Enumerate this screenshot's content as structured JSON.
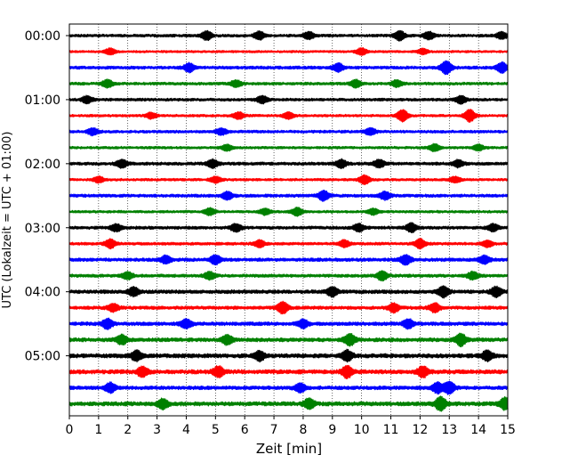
{
  "chart_data": {
    "type": "line",
    "title": "",
    "xlabel": "Zeit  [min]",
    "ylabel": "UTC (Lokalzeit = UTC + 01:00)",
    "xlim": [
      0,
      15
    ],
    "x_ticks": [
      0,
      1,
      2,
      3,
      4,
      5,
      6,
      7,
      8,
      9,
      10,
      11,
      12,
      13,
      14,
      15
    ],
    "x_tick_labels": [
      "0",
      "1",
      "2",
      "3",
      "4",
      "5",
      "6",
      "7",
      "8",
      "9",
      "10",
      "11",
      "12",
      "13",
      "14",
      "15"
    ],
    "y_tick_labels": [
      "00:00",
      "01:00",
      "02:00",
      "03:00",
      "04:00",
      "05:00"
    ],
    "y_tick_trace_index": [
      0,
      4,
      8,
      12,
      16,
      20
    ],
    "grid": {
      "x": true,
      "y": false,
      "style": "dotted"
    },
    "trace_interval_minutes": 15,
    "trace_count": 24,
    "trace_colors": [
      "#000000",
      "#ff0000",
      "#0000ff",
      "#008000"
    ],
    "traces": [
      {
        "start": "00:00",
        "color": "#000000",
        "amplitude": 1.0,
        "events": [
          [
            4.7,
            1.8
          ],
          [
            6.5,
            1.6
          ],
          [
            8.2,
            1.4
          ],
          [
            11.3,
            1.9
          ],
          [
            12.3,
            1.5
          ],
          [
            14.8,
            1.4
          ]
        ]
      },
      {
        "start": "00:15",
        "color": "#ff0000",
        "amplitude": 0.8,
        "events": [
          [
            1.4,
            1.6
          ],
          [
            10.0,
            1.8
          ],
          [
            12.1,
            1.4
          ]
        ]
      },
      {
        "start": "00:30",
        "color": "#0000ff",
        "amplitude": 1.1,
        "events": [
          [
            4.1,
            1.6
          ],
          [
            9.2,
            1.5
          ],
          [
            12.9,
            2.4
          ],
          [
            14.8,
            1.9
          ]
        ]
      },
      {
        "start": "00:45",
        "color": "#008000",
        "amplitude": 1.0,
        "events": [
          [
            1.3,
            1.5
          ],
          [
            5.7,
            1.4
          ],
          [
            9.8,
            1.5
          ],
          [
            11.2,
            1.3
          ]
        ]
      },
      {
        "start": "01:00",
        "color": "#000000",
        "amplitude": 1.0,
        "events": [
          [
            0.6,
            1.4
          ],
          [
            6.6,
            1.5
          ],
          [
            13.4,
            1.6
          ]
        ]
      },
      {
        "start": "01:15",
        "color": "#ff0000",
        "amplitude": 0.9,
        "events": [
          [
            2.8,
            1.3
          ],
          [
            5.8,
            1.5
          ],
          [
            7.5,
            1.4
          ],
          [
            11.4,
            2.6
          ],
          [
            13.7,
            2.8
          ]
        ]
      },
      {
        "start": "01:30",
        "color": "#0000ff",
        "amplitude": 1.0,
        "events": [
          [
            0.8,
            1.4
          ],
          [
            5.2,
            1.3
          ],
          [
            10.3,
            1.4
          ]
        ]
      },
      {
        "start": "01:45",
        "color": "#008000",
        "amplitude": 0.9,
        "events": [
          [
            5.4,
            1.4
          ],
          [
            12.5,
            1.6
          ],
          [
            14.0,
            1.3
          ]
        ]
      },
      {
        "start": "02:00",
        "color": "#000000",
        "amplitude": 1.1,
        "events": [
          [
            1.8,
            1.4
          ],
          [
            4.9,
            1.5
          ],
          [
            9.3,
            1.5
          ],
          [
            10.6,
            1.4
          ],
          [
            13.3,
            1.3
          ]
        ]
      },
      {
        "start": "02:15",
        "color": "#ff0000",
        "amplitude": 0.9,
        "events": [
          [
            1.0,
            1.3
          ],
          [
            5.0,
            1.4
          ],
          [
            10.1,
            2.0
          ],
          [
            13.2,
            1.3
          ]
        ]
      },
      {
        "start": "02:30",
        "color": "#0000ff",
        "amplitude": 1.1,
        "events": [
          [
            5.4,
            1.4
          ],
          [
            8.7,
            1.8
          ],
          [
            10.8,
            1.4
          ]
        ]
      },
      {
        "start": "02:45",
        "color": "#008000",
        "amplitude": 0.9,
        "events": [
          [
            4.8,
            1.5
          ],
          [
            6.7,
            1.4
          ],
          [
            7.8,
            1.8
          ],
          [
            10.4,
            1.3
          ]
        ]
      },
      {
        "start": "03:00",
        "color": "#000000",
        "amplitude": 1.1,
        "events": [
          [
            1.6,
            1.3
          ],
          [
            5.7,
            1.4
          ],
          [
            9.9,
            1.4
          ],
          [
            11.7,
            1.6
          ],
          [
            14.5,
            1.3
          ]
        ]
      },
      {
        "start": "03:15",
        "color": "#ff0000",
        "amplitude": 1.0,
        "events": [
          [
            1.4,
            1.8
          ],
          [
            6.5,
            1.4
          ],
          [
            9.4,
            1.4
          ],
          [
            12.0,
            1.9
          ],
          [
            14.3,
            1.3
          ]
        ]
      },
      {
        "start": "03:30",
        "color": "#0000ff",
        "amplitude": 1.2,
        "events": [
          [
            3.3,
            1.3
          ],
          [
            5.0,
            1.5
          ],
          [
            11.5,
            1.6
          ],
          [
            14.2,
            1.4
          ]
        ]
      },
      {
        "start": "03:45",
        "color": "#008000",
        "amplitude": 1.1,
        "events": [
          [
            2.0,
            1.3
          ],
          [
            4.8,
            1.4
          ],
          [
            10.7,
            1.7
          ],
          [
            13.8,
            1.4
          ]
        ]
      },
      {
        "start": "04:00",
        "color": "#000000",
        "amplitude": 1.3,
        "events": [
          [
            2.2,
            1.3
          ],
          [
            9.0,
            1.4
          ],
          [
            12.8,
            1.7
          ],
          [
            14.6,
            1.5
          ]
        ]
      },
      {
        "start": "04:15",
        "color": "#ff0000",
        "amplitude": 1.2,
        "events": [
          [
            1.5,
            1.3
          ],
          [
            7.3,
            2.0
          ],
          [
            11.1,
            1.5
          ],
          [
            12.5,
            1.5
          ]
        ]
      },
      {
        "start": "04:30",
        "color": "#0000ff",
        "amplitude": 1.3,
        "events": [
          [
            1.3,
            1.5
          ],
          [
            4.0,
            1.4
          ],
          [
            8.0,
            1.3
          ],
          [
            11.6,
            1.4
          ]
        ]
      },
      {
        "start": "04:45",
        "color": "#008000",
        "amplitude": 1.4,
        "events": [
          [
            1.8,
            1.3
          ],
          [
            5.4,
            1.4
          ],
          [
            9.6,
            1.6
          ],
          [
            13.4,
            1.7
          ]
        ]
      },
      {
        "start": "05:00",
        "color": "#000000",
        "amplitude": 1.5,
        "events": [
          [
            2.3,
            1.3
          ],
          [
            6.5,
            1.3
          ],
          [
            9.5,
            1.4
          ],
          [
            14.3,
            1.3
          ]
        ]
      },
      {
        "start": "05:15",
        "color": "#ff0000",
        "amplitude": 1.5,
        "events": [
          [
            2.5,
            1.3
          ],
          [
            5.1,
            1.4
          ],
          [
            9.5,
            1.6
          ],
          [
            12.1,
            1.4
          ]
        ]
      },
      {
        "start": "05:30",
        "color": "#0000ff",
        "amplitude": 1.3,
        "events": [
          [
            1.4,
            1.5
          ],
          [
            7.9,
            1.4
          ],
          [
            12.6,
            1.6
          ],
          [
            13.0,
            1.9
          ]
        ]
      },
      {
        "start": "05:45",
        "color": "#008000",
        "amplitude": 1.5,
        "events": [
          [
            3.2,
            1.3
          ],
          [
            8.2,
            1.3
          ],
          [
            12.7,
            1.8
          ],
          [
            14.9,
            1.5
          ]
        ]
      }
    ]
  }
}
